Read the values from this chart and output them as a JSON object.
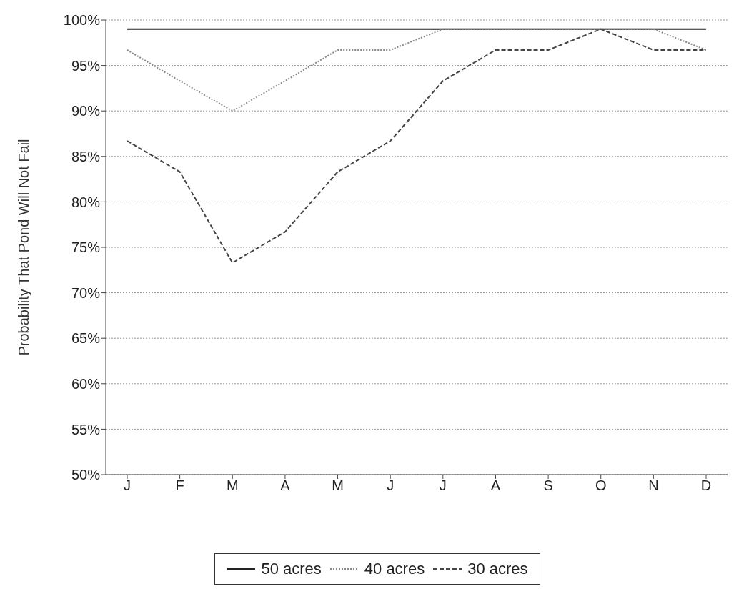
{
  "chart_data": {
    "type": "line",
    "ylabel": "Probability That Pond Will Not Fail",
    "categories": [
      "J",
      "F",
      "M",
      "A",
      "M",
      "J",
      "J",
      "A",
      "S",
      "O",
      "N",
      "D"
    ],
    "series": [
      {
        "name": "50 acres",
        "color": "#222222",
        "line_style": "solid",
        "values": [
          99,
          99,
          99,
          99,
          99,
          99,
          99,
          99,
          99,
          99,
          99,
          99
        ]
      },
      {
        "name": "40 acres",
        "color": "#8a8a8a",
        "line_style": "dotted",
        "values": [
          96.7,
          93.3,
          90,
          93.3,
          96.7,
          96.7,
          99,
          99,
          99,
          99,
          99,
          96.7
        ]
      },
      {
        "name": "30 acres",
        "color": "#444444",
        "line_style": "dashed",
        "values": [
          86.7,
          83.3,
          73.3,
          76.7,
          83.3,
          86.7,
          93.3,
          96.7,
          96.7,
          99,
          96.7,
          96.7
        ]
      }
    ],
    "ylim": [
      50,
      100
    ],
    "yticks": [
      {
        "value": 50,
        "label": "50%"
      },
      {
        "value": 55,
        "label": "55%"
      },
      {
        "value": 60,
        "label": "60%"
      },
      {
        "value": 65,
        "label": "65%"
      },
      {
        "value": 70,
        "label": "70%"
      },
      {
        "value": 75,
        "label": "75%"
      },
      {
        "value": 80,
        "label": "80%"
      },
      {
        "value": 85,
        "label": "85%"
      },
      {
        "value": 90,
        "label": "90%"
      },
      {
        "value": 95,
        "label": "95%"
      },
      {
        "value": 100,
        "label": "100%"
      }
    ],
    "grid": "y",
    "legend": "bottom",
    "marker": "none"
  }
}
